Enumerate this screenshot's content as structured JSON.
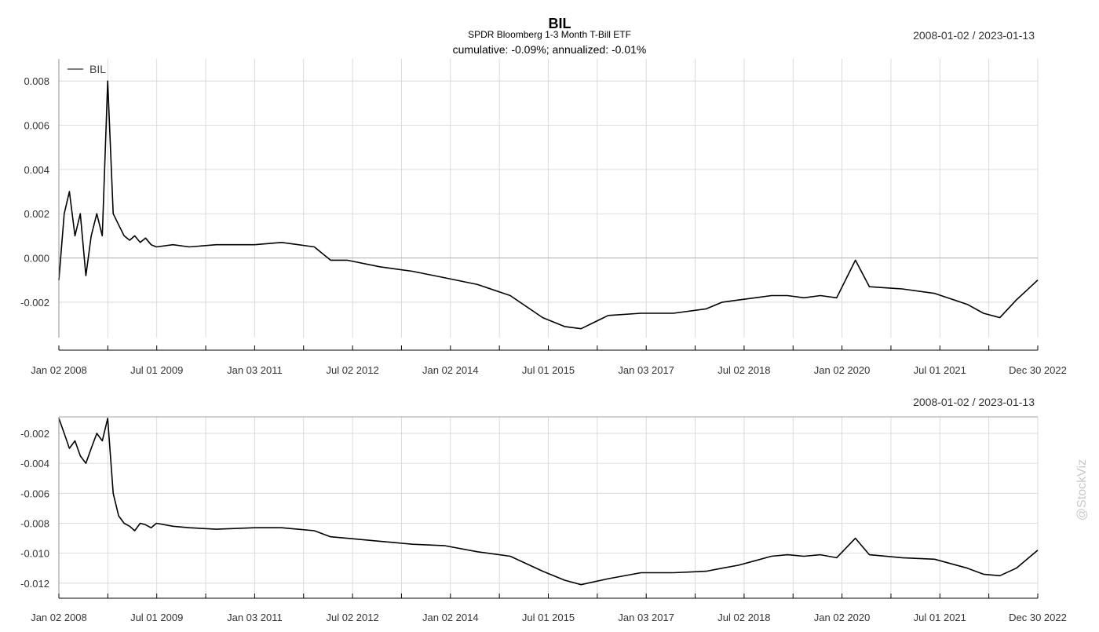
{
  "title": "BIL",
  "subtitle": "SPDR Bloomberg 1-3 Month T-Bill ETF",
  "summary": "cumulative: -0.09%; annualized: -0.01%",
  "watermark": "@StockViz",
  "colors": {
    "line": "#000000",
    "grid": "#d3d3d3",
    "zero": "#b0b0b0",
    "axis": "#808080",
    "watermark": "#c8c8c8"
  },
  "chart_data": [
    {
      "type": "line",
      "date_range_label": "2008-01-02 / 2023-01-13",
      "legend": {
        "entries": [
          "BIL"
        ],
        "position": "top-left"
      },
      "grid": true,
      "x_tick_labels": [
        "Jan 02 2008",
        "Jul 01 2009",
        "Jan 03 2011",
        "Jul 02 2012",
        "Jan 02 2014",
        "Jul 01 2015",
        "Jan 03 2017",
        "Jul 02 2018",
        "Jan 02 2020",
        "Jul 01 2021",
        "Dec 30 2022"
      ],
      "y_tick_labels": [
        "-0.002",
        "0.000",
        "0.002",
        "0.004",
        "0.006",
        "0.008"
      ],
      "ylim": [
        -0.0036,
        0.009
      ],
      "series": [
        {
          "name": "BIL",
          "x": [
            "2008-01-02",
            "2008-02-01",
            "2008-03-01",
            "2008-04-01",
            "2008-05-01",
            "2008-06-01",
            "2008-07-01",
            "2008-08-01",
            "2008-09-01",
            "2008-10-01",
            "2008-11-01",
            "2008-12-01",
            "2009-01-01",
            "2009-02-01",
            "2009-03-01",
            "2009-04-01",
            "2009-05-01",
            "2009-06-01",
            "2009-07-01",
            "2009-10-01",
            "2010-01-01",
            "2010-06-01",
            "2011-01-01",
            "2011-06-01",
            "2011-12-01",
            "2012-03-01",
            "2012-06-01",
            "2012-12-01",
            "2013-06-01",
            "2013-12-01",
            "2014-06-01",
            "2014-12-01",
            "2015-06-01",
            "2015-10-01",
            "2016-01-01",
            "2016-06-01",
            "2016-12-01",
            "2017-06-01",
            "2017-12-01",
            "2018-03-01",
            "2018-06-01",
            "2018-09-01",
            "2018-12-01",
            "2019-03-01",
            "2019-06-01",
            "2019-09-01",
            "2019-12-01",
            "2020-03-15",
            "2020-06-01",
            "2020-12-01",
            "2021-06-01",
            "2021-12-01",
            "2022-03-01",
            "2022-06-01",
            "2022-09-01",
            "2022-12-30"
          ],
          "values": [
            -0.001,
            0.002,
            0.003,
            0.001,
            0.002,
            -0.0008,
            0.001,
            0.002,
            0.001,
            0.008,
            0.002,
            0.0015,
            0.001,
            0.0008,
            0.001,
            0.0007,
            0.0009,
            0.0006,
            0.0005,
            0.0006,
            0.0005,
            0.0006,
            0.0006,
            0.0007,
            0.0005,
            -0.0001,
            -0.0001,
            -0.0004,
            -0.0006,
            -0.0009,
            -0.0012,
            -0.0017,
            -0.0027,
            -0.0031,
            -0.0032,
            -0.0026,
            -0.0025,
            -0.0025,
            -0.0023,
            -0.002,
            -0.0019,
            -0.0018,
            -0.0017,
            -0.0017,
            -0.0018,
            -0.0017,
            -0.0018,
            -0.0001,
            -0.0013,
            -0.0014,
            -0.0016,
            -0.0021,
            -0.0025,
            -0.0027,
            -0.0019,
            -0.001
          ]
        }
      ]
    },
    {
      "type": "line",
      "date_range_label": "2008-01-02 / 2023-01-13",
      "grid": true,
      "x_tick_labels": [
        "Jan 02 2008",
        "Jul 01 2009",
        "Jan 03 2011",
        "Jul 02 2012",
        "Jan 02 2014",
        "Jul 01 2015",
        "Jan 03 2017",
        "Jul 02 2018",
        "Jan 02 2020",
        "Jul 01 2021",
        "Dec 30 2022"
      ],
      "y_tick_labels": [
        "-0.012",
        "-0.010",
        "-0.008",
        "-0.006",
        "-0.004",
        "-0.002"
      ],
      "ylim": [
        -0.0129,
        -0.0009
      ],
      "series": [
        {
          "x": [
            "2008-01-02",
            "2008-02-01",
            "2008-03-01",
            "2008-04-01",
            "2008-05-01",
            "2008-06-01",
            "2008-07-01",
            "2008-08-01",
            "2008-09-01",
            "2008-10-01",
            "2008-11-01",
            "2008-12-01",
            "2009-01-01",
            "2009-02-01",
            "2009-03-01",
            "2009-04-01",
            "2009-05-01",
            "2009-06-01",
            "2009-07-01",
            "2009-10-01",
            "2010-01-01",
            "2010-06-01",
            "2011-01-01",
            "2011-06-01",
            "2011-12-01",
            "2012-03-01",
            "2012-06-01",
            "2012-12-01",
            "2013-06-01",
            "2013-12-01",
            "2014-06-01",
            "2014-12-01",
            "2015-06-01",
            "2015-10-01",
            "2016-01-01",
            "2016-06-01",
            "2016-12-01",
            "2017-06-01",
            "2017-12-01",
            "2018-03-01",
            "2018-06-01",
            "2018-09-01",
            "2018-12-01",
            "2019-03-01",
            "2019-06-01",
            "2019-09-01",
            "2019-12-01",
            "2020-03-15",
            "2020-06-01",
            "2020-12-01",
            "2021-06-01",
            "2021-12-01",
            "2022-03-01",
            "2022-06-01",
            "2022-09-01",
            "2022-12-30"
          ],
          "values": [
            -0.001,
            -0.002,
            -0.003,
            -0.0025,
            -0.0035,
            -0.004,
            -0.003,
            -0.002,
            -0.0025,
            -0.001,
            -0.006,
            -0.0075,
            -0.008,
            -0.0082,
            -0.0085,
            -0.008,
            -0.0081,
            -0.0083,
            -0.008,
            -0.0082,
            -0.0083,
            -0.0084,
            -0.0083,
            -0.0083,
            -0.0085,
            -0.0089,
            -0.009,
            -0.0092,
            -0.0094,
            -0.0095,
            -0.0099,
            -0.0102,
            -0.0112,
            -0.0118,
            -0.0121,
            -0.0117,
            -0.0113,
            -0.0113,
            -0.0112,
            -0.011,
            -0.0108,
            -0.0105,
            -0.0102,
            -0.0101,
            -0.0102,
            -0.0101,
            -0.0103,
            -0.009,
            -0.0101,
            -0.0103,
            -0.0104,
            -0.011,
            -0.0114,
            -0.0115,
            -0.011,
            -0.0098
          ]
        }
      ]
    }
  ]
}
